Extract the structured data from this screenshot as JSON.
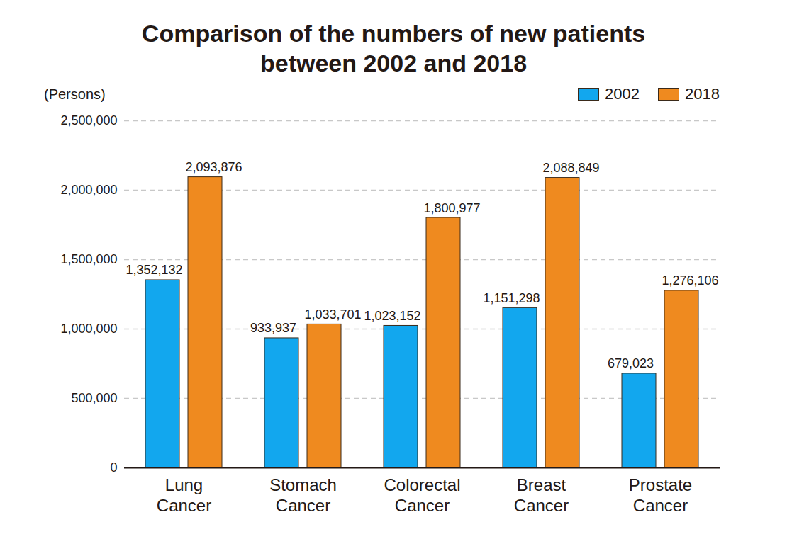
{
  "chart_data": {
    "type": "bar",
    "title": "Comparison of the numbers of new patients between 2002 and 2018",
    "ylabel": "(Persons)",
    "categories": [
      "Lung Cancer",
      "Stomach Cancer",
      "Colorectal Cancer",
      "Breast Cancer",
      "Prostate Cancer"
    ],
    "series": [
      {
        "name": "2002",
        "color": "#12a7ee",
        "values": [
          1352132,
          933937,
          1023152,
          1151298,
          679023
        ],
        "value_labels": [
          "1,352,132",
          "933,937",
          "1,023,152",
          "1,151,298",
          "679,023"
        ]
      },
      {
        "name": "2018",
        "color": "#ef8a1f",
        "values": [
          2093876,
          1033701,
          1800977,
          2088849,
          1276106
        ],
        "value_labels": [
          "2,093,876",
          "1,033,701",
          "1,800,977",
          "2,088,849",
          "1,276,106"
        ]
      }
    ],
    "ylim": [
      0,
      2500000
    ],
    "yticks": [
      0,
      {
        "value": 500000,
        "label": "500,000"
      },
      {
        "value": 1000000,
        "label": "1,000,000"
      },
      {
        "value": 1500000,
        "label": "1,500,000"
      },
      {
        "value": 2000000,
        "label": "2,000,000"
      },
      {
        "value": 2500000,
        "label": "2,500,000"
      }
    ],
    "grid": true,
    "data_labels": true,
    "legend": "top-right"
  }
}
